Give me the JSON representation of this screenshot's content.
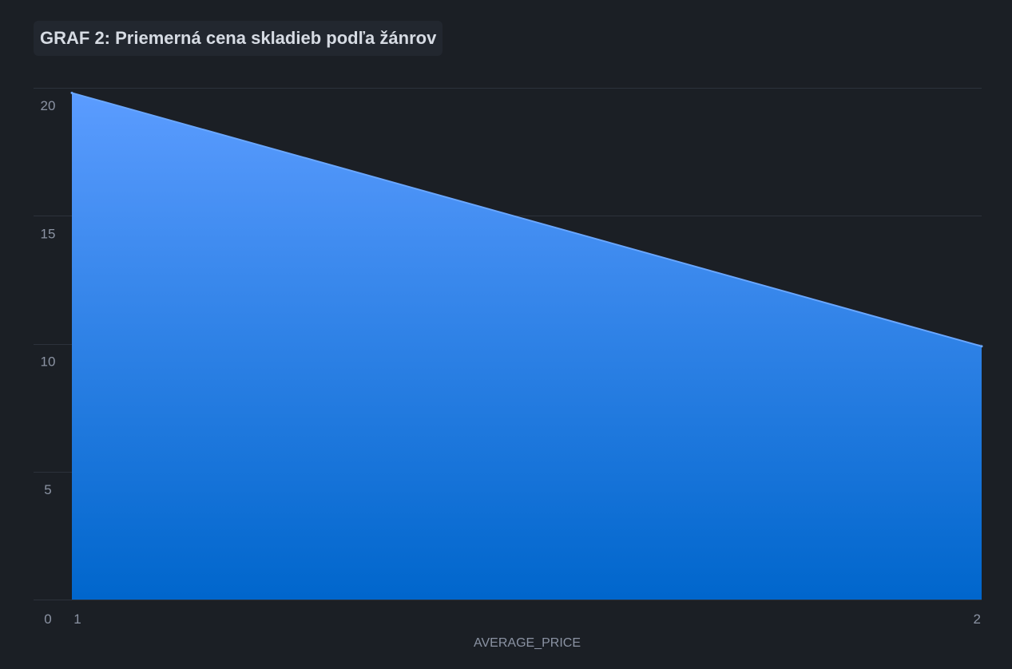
{
  "chart_data": {
    "type": "area",
    "title": "GRAF 2: Priemerná cena skladieb podľa žánrov",
    "xlabel": "AVERAGE_PRICE",
    "ylabel": "",
    "x": [
      1,
      2
    ],
    "y_ticks": [
      0,
      5,
      10,
      15,
      20
    ],
    "x_ticks": [
      1,
      2
    ],
    "ylim": [
      0,
      20
    ],
    "grid": true,
    "legend": "none",
    "series": [
      {
        "values": [
          19.8,
          9.9
        ]
      }
    ],
    "colors": {
      "background": "#1b1f25",
      "fill_top": "#5b9cff",
      "fill_bottom": "#0066cc",
      "line": "#6aa7ff",
      "grid": "#2c323b",
      "tick": "#8b93a3"
    }
  }
}
